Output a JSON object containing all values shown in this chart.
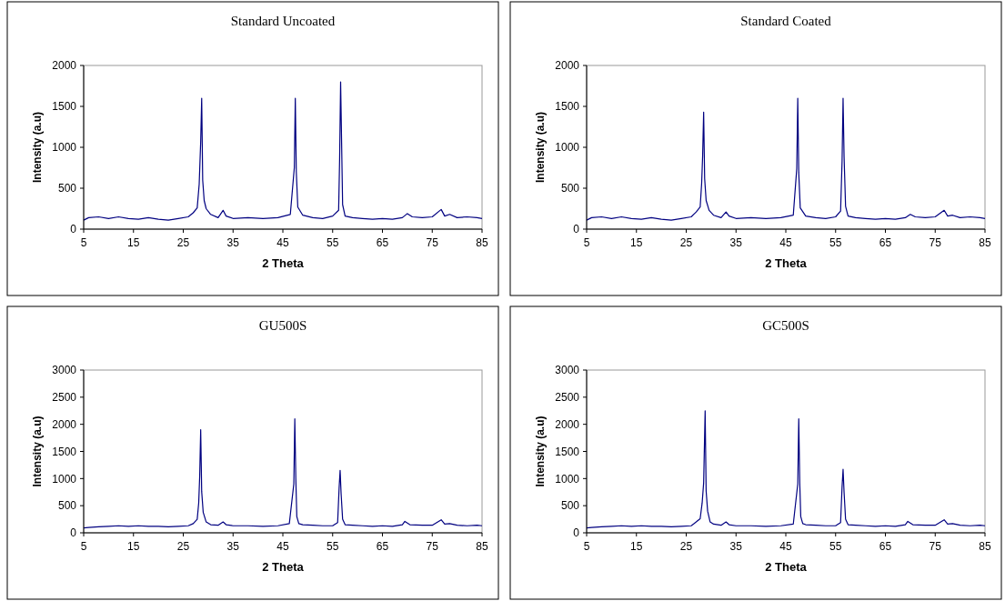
{
  "chart_data": [
    {
      "type": "line",
      "title": "Standard Uncoated",
      "xlabel": "2 Theta",
      "ylabel": "Intensity (a.u)",
      "xlim": [
        5,
        85
      ],
      "xticks": [
        5,
        15,
        25,
        35,
        45,
        55,
        65,
        75,
        85
      ],
      "ylim": [
        0,
        2000
      ],
      "yticks": [
        0,
        500,
        1000,
        1500,
        2000
      ],
      "series": [
        {
          "color": "#000080",
          "x": [
            5,
            6,
            8,
            10,
            12,
            14,
            16,
            18,
            20,
            22,
            24,
            26,
            27,
            27.8,
            28.2,
            28.5,
            28.7,
            28.9,
            29.2,
            29.6,
            30.5,
            32,
            33,
            33.6,
            35,
            38,
            41,
            44,
            46.5,
            47.3,
            47.5,
            47.7,
            48,
            49,
            51,
            53,
            55,
            56.2,
            56.4,
            56.6,
            56.8,
            57,
            57.5,
            59,
            61,
            63,
            65,
            67,
            69,
            70,
            71,
            73,
            75,
            76.8,
            77.5,
            78.5,
            80,
            82,
            84,
            85
          ],
          "values": [
            110,
            140,
            150,
            130,
            150,
            130,
            120,
            140,
            120,
            110,
            130,
            150,
            200,
            260,
            550,
            1070,
            1600,
            600,
            350,
            250,
            180,
            140,
            230,
            160,
            130,
            140,
            130,
            140,
            180,
            750,
            1600,
            700,
            270,
            170,
            140,
            130,
            160,
            230,
            850,
            1800,
            1050,
            300,
            160,
            140,
            130,
            120,
            130,
            120,
            140,
            190,
            150,
            140,
            150,
            240,
            160,
            180,
            140,
            150,
            140,
            130
          ]
        }
      ]
    },
    {
      "type": "line",
      "title": "Standard Coated",
      "xlabel": "2 Theta",
      "ylabel": "Intensity (a.u)",
      "xlim": [
        5,
        85
      ],
      "xticks": [
        5,
        15,
        25,
        35,
        45,
        55,
        65,
        75,
        85
      ],
      "ylim": [
        0,
        2000
      ],
      "yticks": [
        0,
        500,
        1000,
        1500,
        2000
      ],
      "series": [
        {
          "color": "#000080",
          "x": [
            5,
            6,
            8,
            10,
            12,
            14,
            16,
            18,
            20,
            22,
            24,
            26,
            27,
            27.8,
            28.1,
            28.3,
            28.5,
            28.7,
            29,
            29.6,
            30.5,
            32,
            33,
            33.6,
            35,
            38,
            41,
            44,
            46.5,
            47.2,
            47.4,
            47.6,
            47.9,
            49,
            51,
            53,
            55,
            56,
            56.3,
            56.5,
            56.7,
            57,
            57.5,
            59,
            61,
            63,
            65,
            67,
            69,
            70,
            71,
            73,
            75,
            76.8,
            77.5,
            78.5,
            80,
            82,
            84,
            85
          ],
          "values": [
            110,
            140,
            150,
            130,
            150,
            130,
            120,
            140,
            120,
            110,
            130,
            150,
            210,
            270,
            560,
            900,
            1430,
            620,
            350,
            230,
            170,
            140,
            210,
            160,
            130,
            140,
            130,
            140,
            170,
            740,
            1600,
            690,
            260,
            160,
            140,
            130,
            150,
            220,
            830,
            1600,
            890,
            280,
            160,
            140,
            130,
            120,
            130,
            120,
            140,
            180,
            150,
            140,
            150,
            230,
            160,
            170,
            140,
            150,
            140,
            130
          ]
        }
      ]
    },
    {
      "type": "line",
      "title": "GU500S",
      "xlabel": "2 Theta",
      "ylabel": "Intensity (a.u)",
      "xlim": [
        5,
        85
      ],
      "xticks": [
        5,
        15,
        25,
        35,
        45,
        55,
        65,
        75,
        85
      ],
      "ylim": [
        0,
        3000
      ],
      "yticks": [
        0,
        500,
        1000,
        1500,
        2000,
        2500,
        3000
      ],
      "series": [
        {
          "color": "#000080",
          "x": [
            5,
            6,
            8,
            10,
            12,
            14,
            16,
            18,
            20,
            22,
            24,
            26,
            27,
            27.8,
            28.1,
            28.3,
            28.5,
            28.7,
            29,
            29.6,
            30.5,
            32,
            33,
            33.6,
            35,
            38,
            41,
            44,
            46.3,
            47.2,
            47.4,
            47.6,
            47.8,
            48.2,
            49,
            51,
            53,
            55,
            56,
            56.3,
            56.5,
            56.7,
            57,
            57.5,
            59,
            61,
            63,
            65,
            67,
            69,
            69.5,
            70.5,
            73,
            75,
            76.8,
            77.5,
            78.5,
            80,
            82,
            84,
            85
          ],
          "values": [
            90,
            100,
            110,
            120,
            130,
            120,
            130,
            120,
            120,
            110,
            120,
            130,
            170,
            250,
            550,
            1040,
            1900,
            760,
            380,
            200,
            150,
            140,
            200,
            150,
            130,
            130,
            120,
            130,
            170,
            900,
            2100,
            1010,
            300,
            170,
            150,
            140,
            130,
            130,
            190,
            830,
            1150,
            720,
            250,
            150,
            140,
            130,
            120,
            130,
            120,
            150,
            210,
            150,
            140,
            140,
            240,
            160,
            170,
            140,
            130,
            140,
            130
          ]
        }
      ]
    },
    {
      "type": "line",
      "title": "GC500S",
      "xlabel": "2 Theta",
      "ylabel": "Intensity (a.u)",
      "xlim": [
        5,
        85
      ],
      "xticks": [
        5,
        15,
        25,
        35,
        45,
        55,
        65,
        75,
        85
      ],
      "ylim": [
        0,
        3000
      ],
      "yticks": [
        0,
        500,
        1000,
        1500,
        2000,
        2500,
        3000
      ],
      "series": [
        {
          "color": "#000080",
          "x": [
            5,
            6,
            8,
            10,
            12,
            14,
            16,
            18,
            20,
            22,
            24,
            26,
            27,
            27.8,
            28.2,
            28.5,
            28.8,
            29,
            29.3,
            29.8,
            30.5,
            32,
            33,
            33.6,
            35,
            38,
            41,
            44,
            46.5,
            47.4,
            47.6,
            47.8,
            48,
            48.4,
            49,
            51,
            53,
            55,
            56,
            56.3,
            56.5,
            56.7,
            57,
            57.5,
            59,
            61,
            63,
            65,
            67,
            69,
            69.5,
            70.5,
            73,
            75,
            76.8,
            77.5,
            78.5,
            80,
            82,
            84,
            85
          ],
          "values": [
            90,
            100,
            110,
            120,
            130,
            120,
            130,
            120,
            120,
            110,
            120,
            130,
            200,
            260,
            550,
            920,
            2250,
            770,
            400,
            200,
            160,
            140,
            200,
            150,
            130,
            130,
            120,
            130,
            160,
            900,
            2100,
            920,
            300,
            170,
            150,
            140,
            130,
            130,
            190,
            850,
            1170,
            750,
            250,
            150,
            140,
            130,
            120,
            130,
            120,
            150,
            210,
            150,
            140,
            140,
            240,
            160,
            170,
            140,
            130,
            140,
            130
          ]
        }
      ]
    }
  ]
}
